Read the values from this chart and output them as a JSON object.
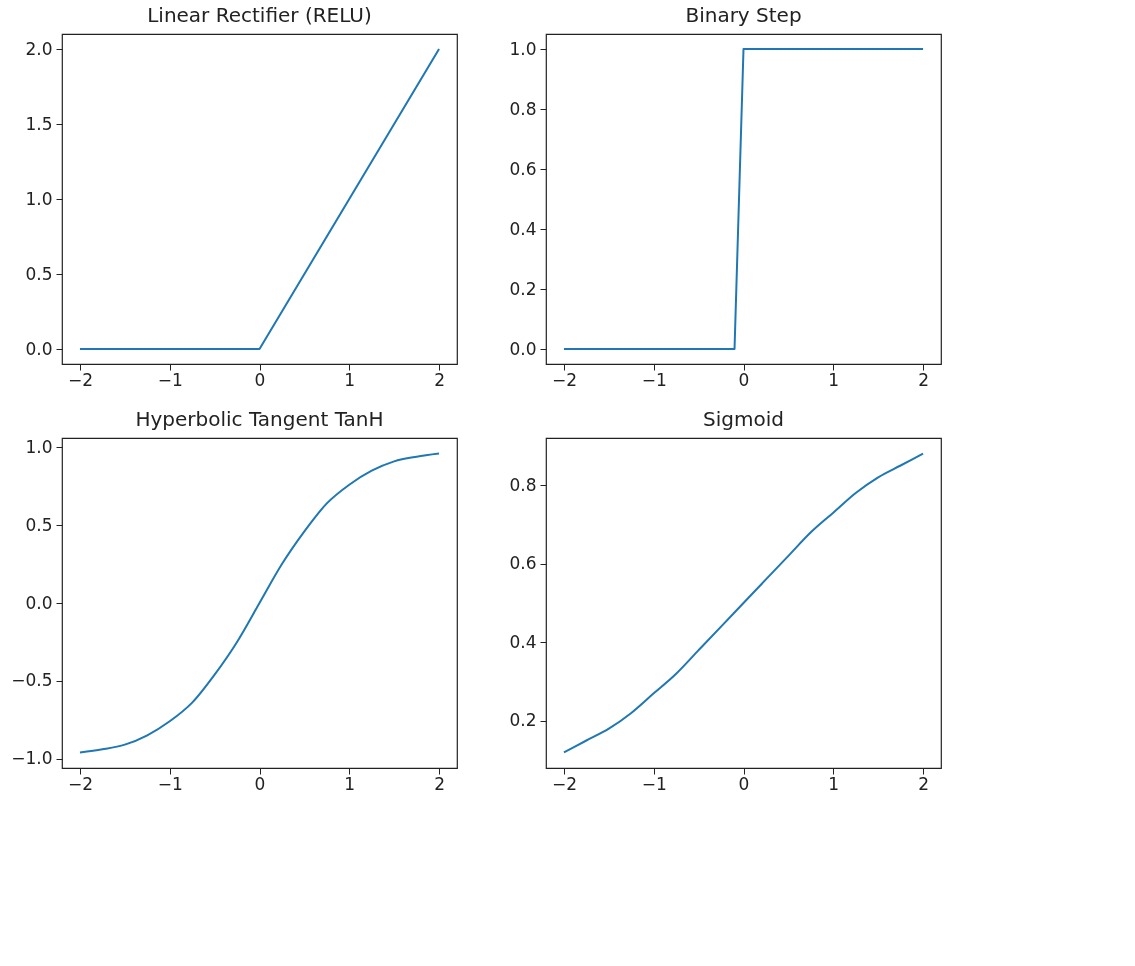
{
  "chart_data": [
    {
      "type": "line",
      "title": "Linear Rectifier (RELU)",
      "x": [
        -2,
        0,
        2
      ],
      "series": [
        {
          "color": "#1f77b4",
          "values": [
            0,
            0,
            2
          ]
        }
      ],
      "xlim": [
        -2.2,
        2.2
      ],
      "ylim": [
        -0.1,
        2.1
      ],
      "xticks": [
        {
          "value": -2,
          "label": "−2"
        },
        {
          "value": -1,
          "label": "−1"
        },
        {
          "value": 0,
          "label": "0"
        },
        {
          "value": 1,
          "label": "1"
        },
        {
          "value": 2,
          "label": "2"
        }
      ],
      "yticks": [
        {
          "value": 0,
          "label": "0.0"
        },
        {
          "value": 0.5,
          "label": "0.5"
        },
        {
          "value": 1,
          "label": "1.0"
        },
        {
          "value": 1.5,
          "label": "1.5"
        },
        {
          "value": 2,
          "label": "2.0"
        }
      ],
      "grid": false
    },
    {
      "type": "line",
      "title": "Binary Step",
      "x": [
        -2,
        -0.1,
        0,
        2
      ],
      "series": [
        {
          "color": "#1f77b4",
          "values": [
            0,
            0,
            1,
            1
          ]
        }
      ],
      "xlim": [
        -2.2,
        2.2
      ],
      "ylim": [
        -0.05,
        1.05
      ],
      "xticks": [
        {
          "value": -2,
          "label": "−2"
        },
        {
          "value": -1,
          "label": "−1"
        },
        {
          "value": 0,
          "label": "0"
        },
        {
          "value": 1,
          "label": "1"
        },
        {
          "value": 2,
          "label": "2"
        }
      ],
      "yticks": [
        {
          "value": 0,
          "label": "0.0"
        },
        {
          "value": 0.2,
          "label": "0.2"
        },
        {
          "value": 0.4,
          "label": "0.4"
        },
        {
          "value": 0.6,
          "label": "0.6"
        },
        {
          "value": 0.8,
          "label": "0.8"
        },
        {
          "value": 1,
          "label": "1.0"
        }
      ],
      "grid": false
    },
    {
      "type": "line",
      "title": "Hyperbolic Tangent TanH",
      "x": [
        -2,
        -1.75,
        -1.5,
        -1.25,
        -1,
        -0.75,
        -0.5,
        -0.25,
        0,
        0.25,
        0.5,
        0.75,
        1,
        1.25,
        1.5,
        1.75,
        2
      ],
      "series": [
        {
          "color": "#1f77b4",
          "values": [
            -0.96,
            -0.94,
            -0.91,
            -0.85,
            -0.76,
            -0.64,
            -0.46,
            -0.25,
            0,
            0.25,
            0.46,
            0.64,
            0.76,
            0.85,
            0.91,
            0.94,
            0.96
          ]
        }
      ],
      "xlim": [
        -2.2,
        2.2
      ],
      "ylim": [
        -1.06,
        1.06
      ],
      "xticks": [
        {
          "value": -2,
          "label": "−2"
        },
        {
          "value": -1,
          "label": "−1"
        },
        {
          "value": 0,
          "label": "0"
        },
        {
          "value": 1,
          "label": "1"
        },
        {
          "value": 2,
          "label": "2"
        }
      ],
      "yticks": [
        {
          "value": -1,
          "label": "−1.0"
        },
        {
          "value": -0.5,
          "label": "−0.5"
        },
        {
          "value": 0,
          "label": "0.0"
        },
        {
          "value": 0.5,
          "label": "0.5"
        },
        {
          "value": 1,
          "label": "1.0"
        }
      ],
      "grid": false
    },
    {
      "type": "line",
      "title": "Sigmoid",
      "x": [
        -2,
        -1.75,
        -1.5,
        -1.25,
        -1,
        -0.75,
        -0.5,
        -0.25,
        0,
        0.25,
        0.5,
        0.75,
        1,
        1.25,
        1.5,
        1.75,
        2
      ],
      "series": [
        {
          "color": "#1f77b4",
          "values": [
            0.12,
            0.15,
            0.18,
            0.22,
            0.27,
            0.32,
            0.38,
            0.44,
            0.5,
            0.56,
            0.62,
            0.68,
            0.73,
            0.78,
            0.82,
            0.85,
            0.88
          ]
        }
      ],
      "xlim": [
        -2.2,
        2.2
      ],
      "ylim": [
        0.08,
        0.92
      ],
      "xticks": [
        {
          "value": -2,
          "label": "−2"
        },
        {
          "value": -1,
          "label": "−1"
        },
        {
          "value": 0,
          "label": "0"
        },
        {
          "value": 1,
          "label": "1"
        },
        {
          "value": 2,
          "label": "2"
        }
      ],
      "yticks": [
        {
          "value": 0.2,
          "label": "0.2"
        },
        {
          "value": 0.4,
          "label": "0.4"
        },
        {
          "value": 0.6,
          "label": "0.6"
        },
        {
          "value": 0.8,
          "label": "0.8"
        }
      ],
      "grid": false
    }
  ]
}
